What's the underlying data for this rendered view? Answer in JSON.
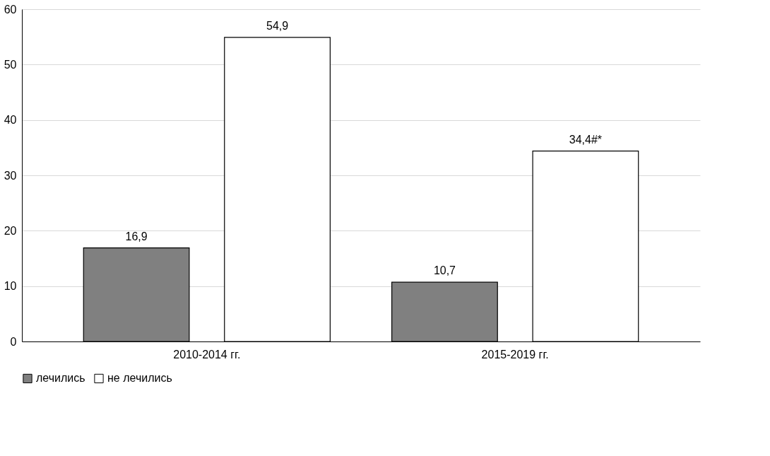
{
  "chart_data": {
    "type": "bar",
    "categories": [
      "2010-2014 гг.",
      "2015-2019 гг."
    ],
    "series": [
      {
        "name": "лечились",
        "color": "#808080",
        "values": [
          16.9,
          10.7
        ],
        "value_labels": [
          "16,9",
          "10,7"
        ]
      },
      {
        "name": "не лечились",
        "color": "#ffffff",
        "values": [
          54.9,
          34.4
        ],
        "value_labels": [
          "54,9",
          "34,4#*"
        ]
      }
    ],
    "ylim": [
      0,
      60
    ],
    "yticks": [
      0,
      10,
      20,
      30,
      40,
      50,
      60
    ],
    "grid": "y",
    "legend": "bottom"
  }
}
